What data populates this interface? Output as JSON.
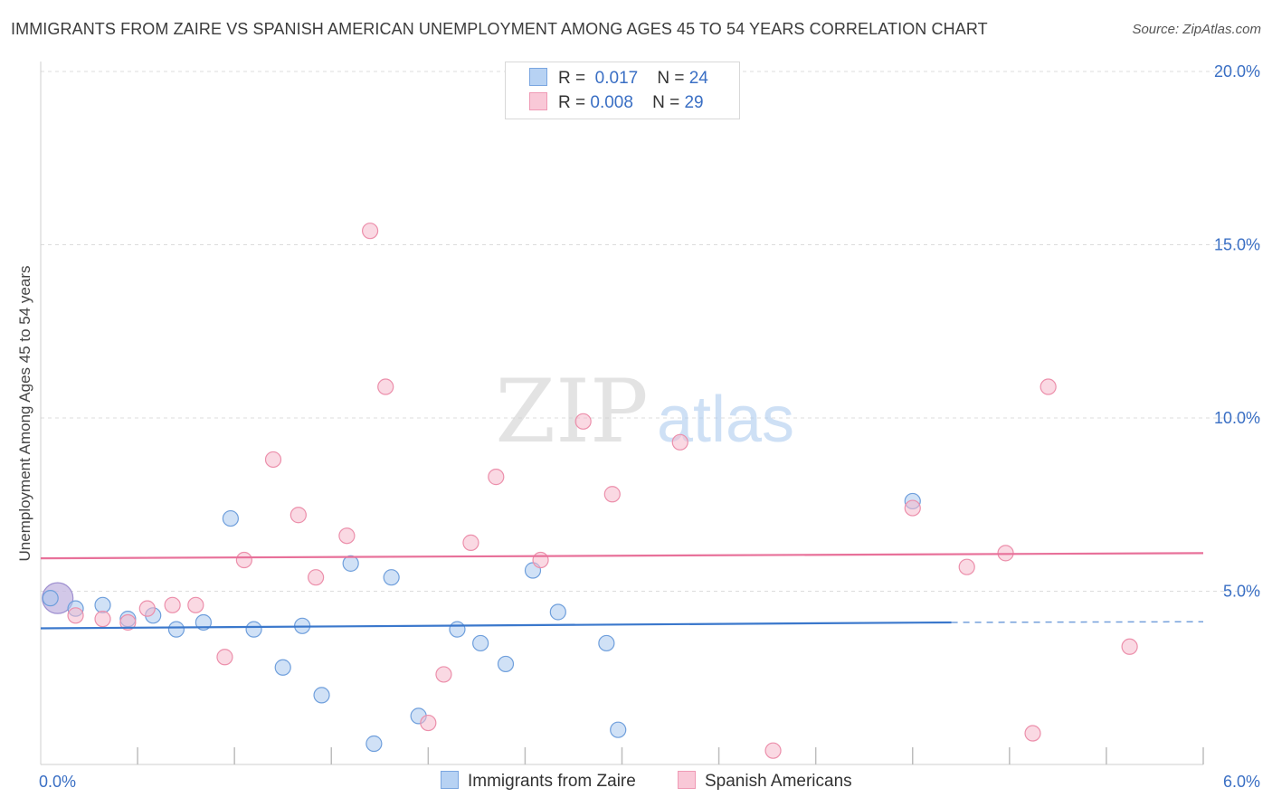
{
  "header": {
    "title": "IMMIGRANTS FROM ZAIRE VS SPANISH AMERICAN UNEMPLOYMENT AMONG AGES 45 TO 54 YEARS CORRELATION CHART",
    "source": "Source: ZipAtlas.com"
  },
  "legend": {
    "row1": {
      "r_label": "R =",
      "r_value": "0.017",
      "n_label": "N =",
      "n_value": "24"
    },
    "row2": {
      "r_label": "R =",
      "r_value": "0.008",
      "n_label": "N =",
      "n_value": "29"
    }
  },
  "bottom_legend": {
    "series1": "Immigrants from Zaire",
    "series2": "Spanish Americans"
  },
  "watermark": {
    "zip": "ZIP",
    "atlas": "atlas"
  },
  "colors": {
    "blue_fill": "#a9c8ef",
    "blue_stroke": "#6f9fdc",
    "blue_line": "#3b78cc",
    "pink_fill": "#f6b9cc",
    "pink_stroke": "#ec8fab",
    "pink_line": "#e8719a",
    "tick_label": "#3a6fc4"
  },
  "chart_data": {
    "type": "scatter",
    "title": "IMMIGRANTS FROM ZAIRE VS SPANISH AMERICAN UNEMPLOYMENT AMONG AGES 45 TO 54 YEARS CORRELATION CHART",
    "xlabel": "",
    "ylabel": "Unemployment Among Ages 45 to 54 years",
    "xlim": [
      0,
      6
    ],
    "ylim": [
      0,
      20
    ],
    "x_tick_labels": [
      {
        "value": 0,
        "label": "0.0%"
      },
      {
        "value": 6,
        "label": "6.0%"
      }
    ],
    "y_tick_labels": [
      {
        "value": 5,
        "label": "5.0%"
      },
      {
        "value": 10,
        "label": "10.0%"
      },
      {
        "value": 15,
        "label": "15.0%"
      },
      {
        "value": 20,
        "label": "20.0%"
      }
    ],
    "series": [
      {
        "name": "Immigrants from Zaire",
        "color": "#6f9fdc",
        "points": [
          [
            0.05,
            4.8
          ],
          [
            0.18,
            4.5
          ],
          [
            0.32,
            4.6
          ],
          [
            0.45,
            4.2
          ],
          [
            0.58,
            4.3
          ],
          [
            0.7,
            3.9
          ],
          [
            0.84,
            4.1
          ],
          [
            0.98,
            7.1
          ],
          [
            1.1,
            3.9
          ],
          [
            1.25,
            2.8
          ],
          [
            1.35,
            4.0
          ],
          [
            1.45,
            2.0
          ],
          [
            1.6,
            5.8
          ],
          [
            1.72,
            0.6
          ],
          [
            1.81,
            5.4
          ],
          [
            1.95,
            1.4
          ],
          [
            2.15,
            3.9
          ],
          [
            2.27,
            3.5
          ],
          [
            2.4,
            2.9
          ],
          [
            2.54,
            5.6
          ],
          [
            2.67,
            4.4
          ],
          [
            2.92,
            3.5
          ],
          [
            2.98,
            1.0
          ],
          [
            4.5,
            7.6
          ]
        ],
        "big_point": [
          0.05,
          4.8
        ],
        "trend": {
          "x0": 0.0,
          "y0": 3.93,
          "x1": 4.7,
          "y1": 4.1,
          "dashed_to_x": 6.0,
          "dashed_to_y": 4.12
        }
      },
      {
        "name": "Spanish Americans",
        "color": "#ec8fab",
        "points": [
          [
            0.18,
            4.3
          ],
          [
            0.32,
            4.2
          ],
          [
            0.45,
            4.1
          ],
          [
            0.55,
            4.5
          ],
          [
            0.68,
            4.6
          ],
          [
            0.8,
            4.6
          ],
          [
            0.95,
            3.1
          ],
          [
            1.05,
            5.9
          ],
          [
            1.2,
            8.8
          ],
          [
            1.33,
            7.2
          ],
          [
            1.42,
            5.4
          ],
          [
            1.58,
            6.6
          ],
          [
            1.7,
            15.4
          ],
          [
            1.78,
            10.9
          ],
          [
            2.08,
            2.6
          ],
          [
            2.22,
            6.4
          ],
          [
            2.35,
            8.3
          ],
          [
            2.58,
            5.9
          ],
          [
            2.8,
            9.9
          ],
          [
            2.95,
            7.8
          ],
          [
            3.3,
            9.3
          ],
          [
            3.78,
            0.4
          ],
          [
            4.5,
            7.4
          ],
          [
            4.78,
            5.7
          ],
          [
            4.98,
            6.1
          ],
          [
            5.12,
            0.9
          ],
          [
            5.2,
            10.9
          ],
          [
            5.62,
            3.4
          ],
          [
            2.0,
            1.2
          ]
        ],
        "trend": {
          "x0": 0.0,
          "y0": 5.95,
          "x1": 6.0,
          "y1": 6.1
        }
      }
    ],
    "legend_stats": [
      {
        "series": "Immigrants from Zaire",
        "R": 0.017,
        "N": 24
      },
      {
        "series": "Spanish Americans",
        "R": 0.008,
        "N": 29
      }
    ]
  }
}
